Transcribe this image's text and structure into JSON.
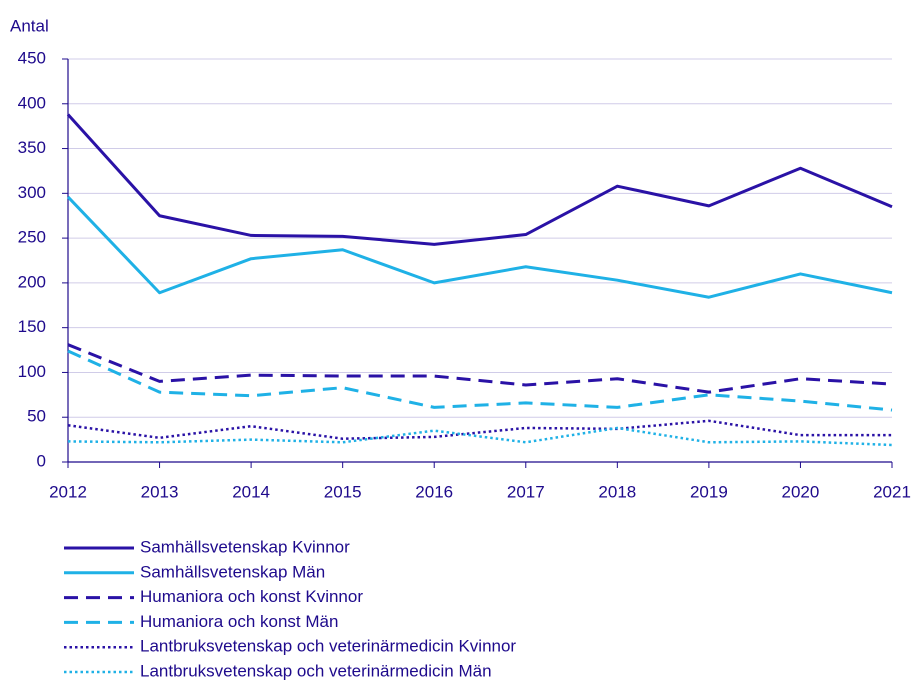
{
  "chart_data": {
    "type": "line",
    "y_label": "Antal",
    "x": [
      2012,
      2013,
      2014,
      2015,
      2016,
      2017,
      2018,
      2019,
      2020,
      2021
    ],
    "xlim": [
      2012,
      2021
    ],
    "xticks": [
      2012,
      2013,
      2014,
      2015,
      2016,
      2017,
      2018,
      2019,
      2020,
      2021
    ],
    "ylim": [
      0,
      450
    ],
    "yticks": [
      0,
      50,
      100,
      150,
      200,
      250,
      300,
      350,
      400,
      450
    ],
    "grid": true,
    "legend": "bottom",
    "series": [
      {
        "name": "Samhällsvetenskap Kvinnor",
        "color": "#2a12a6",
        "style": "solid",
        "values": [
          388,
          275,
          253,
          252,
          243,
          254,
          308,
          286,
          328,
          285
        ]
      },
      {
        "name": "Samhällsvetenskap Män",
        "color": "#1fb1e6",
        "style": "solid",
        "values": [
          296,
          189,
          227,
          237,
          200,
          218,
          203,
          184,
          210,
          189
        ]
      },
      {
        "name": "Humaniora och konst Kvinnor",
        "color": "#2a12a6",
        "style": "dashed",
        "values": [
          131,
          90,
          97,
          96,
          96,
          86,
          93,
          78,
          93,
          87
        ]
      },
      {
        "name": "Humaniora och konst Män",
        "color": "#1fb1e6",
        "style": "dashed",
        "values": [
          124,
          78,
          74,
          83,
          61,
          66,
          61,
          75,
          68,
          58
        ]
      },
      {
        "name": "Lantbruksvetenskap och veterinärmedicin Kvinnor",
        "color": "#2a12a6",
        "style": "dotted",
        "values": [
          41,
          27,
          40,
          26,
          28,
          38,
          37,
          46,
          30,
          30
        ]
      },
      {
        "name": "Lantbruksvetenskap och veterinärmedicin Män",
        "color": "#1fb1e6",
        "style": "dotted",
        "values": [
          23,
          22,
          25,
          22,
          35,
          22,
          38,
          22,
          23,
          19
        ]
      }
    ]
  }
}
